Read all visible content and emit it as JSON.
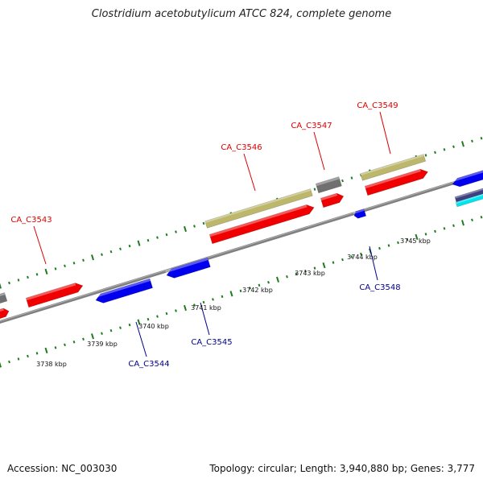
{
  "title": "Clostridium acetobutylicum ATCC 824, complete genome",
  "footer": {
    "accession": "Accession: NC_003030",
    "summary": "Topology: circular; Length: 3,940,880 bp; Genes: 3,777"
  },
  "colors": {
    "gene_red": "#f00000",
    "gene_blue": "#0000ee",
    "gene_khaki": "#bdb76b",
    "gene_gray": "#707070",
    "gene_navy": "#404080",
    "gene_cyan": "#00e5ee",
    "backbone": "#808080",
    "tick_green": "#1e7b1e",
    "label_red": "#dd0000",
    "label_blue": "#00008b"
  },
  "scale_labels": [
    "3738 kbp",
    "3739 kbp",
    "3740 kbp",
    "3741 kbp",
    "3742 kbp",
    "3743 kbp",
    "3744 kbp",
    "3745 kbp"
  ],
  "genes": [
    {
      "id": "g0",
      "label": "",
      "strand": "top",
      "color": "gene_gray"
    },
    {
      "id": "g1",
      "label": "",
      "strand": "top",
      "color": "gene_red"
    },
    {
      "id": "CA_C3543",
      "label": "CA_C3543",
      "strand": "top",
      "color": "gene_red"
    },
    {
      "id": "CA_C3544",
      "label": "CA_C3544",
      "strand": "bottom",
      "color": "gene_blue"
    },
    {
      "id": "CA_C3545",
      "label": "CA_C3545",
      "strand": "bottom",
      "color": "gene_blue"
    },
    {
      "id": "CA_C3546",
      "label": "CA_C3546",
      "strand": "top",
      "color": "gene_red"
    },
    {
      "id": "CA_C3546_cds",
      "label": "",
      "strand": "top",
      "color": "gene_khaki"
    },
    {
      "id": "CA_C3547",
      "label": "CA_C3547",
      "strand": "top",
      "color": "gene_red"
    },
    {
      "id": "CA_C3547_cds",
      "label": "",
      "strand": "top",
      "color": "gene_gray"
    },
    {
      "id": "CA_C3548",
      "label": "CA_C3548",
      "strand": "bottom",
      "color": "gene_blue"
    },
    {
      "id": "CA_C3549",
      "label": "CA_C3549",
      "strand": "top",
      "color": "gene_red"
    },
    {
      "id": "CA_C3549_cds",
      "label": "",
      "strand": "top",
      "color": "gene_khaki"
    },
    {
      "id": "g_right_blue",
      "label": "",
      "strand": "bottom",
      "color": "gene_blue"
    },
    {
      "id": "g_right_navy",
      "label": "",
      "strand": "bottom",
      "color": "gene_navy"
    },
    {
      "id": "g_right_cyan",
      "label": "",
      "strand": "bottom",
      "color": "gene_cyan"
    }
  ]
}
